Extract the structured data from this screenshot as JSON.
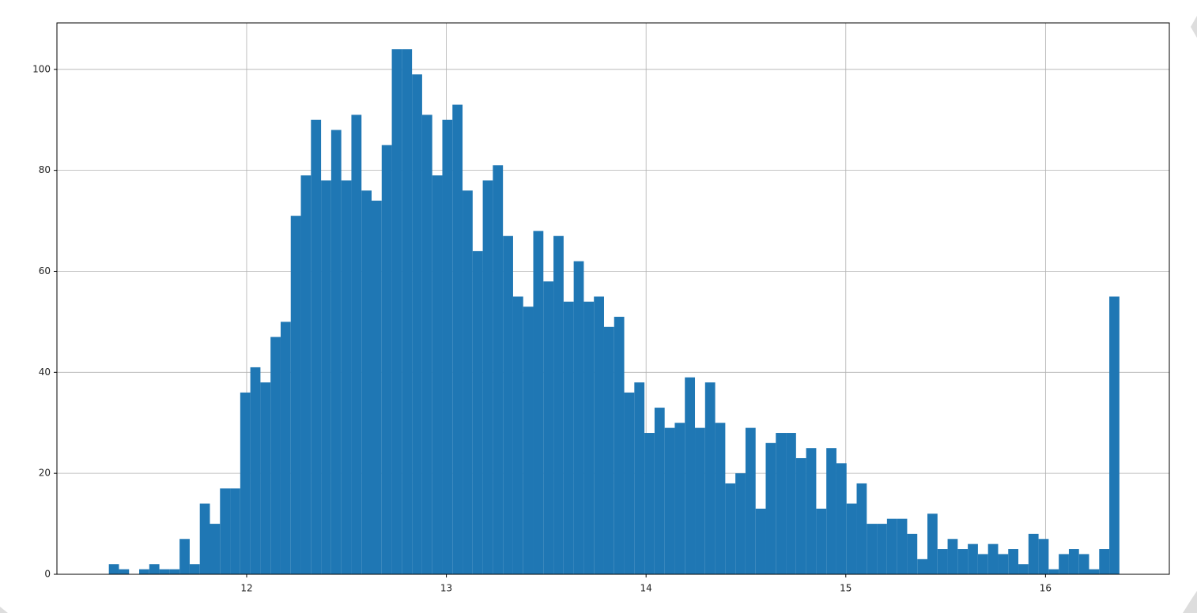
{
  "chart_data": {
    "type": "histogram",
    "bins": [
      11.31,
      11.3606,
      11.4112,
      11.4618,
      11.5124,
      11.563,
      11.6136,
      11.6642,
      11.7148,
      11.7654,
      11.816,
      11.8666,
      11.9172,
      11.9678,
      12.0184,
      12.069,
      12.1196,
      12.1702,
      12.2208,
      12.2714,
      12.322,
      12.3726,
      12.4232,
      12.4738,
      12.5244,
      12.575,
      12.6256,
      12.6762,
      12.7268,
      12.7774,
      12.828,
      12.8786,
      12.9292,
      12.9798,
      13.0304,
      13.081,
      13.1316,
      13.1822,
      13.2328,
      13.2834,
      13.334,
      13.3846,
      13.4352,
      13.4858,
      13.5364,
      13.587,
      13.6376,
      13.6882,
      13.7388,
      13.7894,
      13.84,
      13.8906,
      13.9412,
      13.9918,
      14.0424,
      14.093,
      14.1436,
      14.1942,
      14.2448,
      14.2954,
      14.346,
      14.3966,
      14.4472,
      14.4978,
      14.5484,
      14.599,
      14.6496,
      14.7002,
      14.7508,
      14.8014,
      14.852,
      14.9026,
      14.9532,
      15.0038,
      15.0544,
      15.105,
      15.1556,
      15.2062,
      15.2568,
      15.3074,
      15.358,
      15.4086,
      15.4592,
      15.5098,
      15.5604,
      15.611,
      15.6616,
      15.7122,
      15.7628,
      15.8134,
      15.864,
      15.9146,
      15.9652,
      16.0158,
      16.0664,
      16.117,
      16.1676,
      16.2182,
      16.2688,
      16.3194,
      16.37
    ],
    "values": [
      2,
      1,
      0,
      1,
      2,
      1,
      1,
      7,
      2,
      14,
      10,
      17,
      17,
      36,
      41,
      38,
      47,
      50,
      71,
      79,
      90,
      78,
      88,
      78,
      91,
      76,
      74,
      85,
      104,
      104,
      99,
      91,
      79,
      90,
      93,
      76,
      64,
      78,
      81,
      67,
      55,
      53,
      68,
      58,
      67,
      54,
      62,
      54,
      55,
      49,
      51,
      36,
      38,
      28,
      33,
      29,
      30,
      39,
      29,
      38,
      30,
      18,
      20,
      29,
      13,
      26,
      28,
      28,
      23,
      25,
      13,
      25,
      22,
      14,
      18,
      10,
      10,
      11,
      11,
      8,
      3,
      12,
      5,
      7,
      5,
      6,
      4,
      6,
      4,
      5,
      2,
      8,
      7,
      1,
      4,
      5,
      4,
      1,
      5,
      55
    ],
    "color": "#1f77b4",
    "xlim": [
      11.05,
      16.62
    ],
    "xticks": [
      12,
      13,
      14,
      15,
      16
    ],
    "ylim": [
      0,
      109.2
    ],
    "yticks": [
      0,
      20,
      40,
      60,
      80,
      100
    ],
    "grid": true
  }
}
